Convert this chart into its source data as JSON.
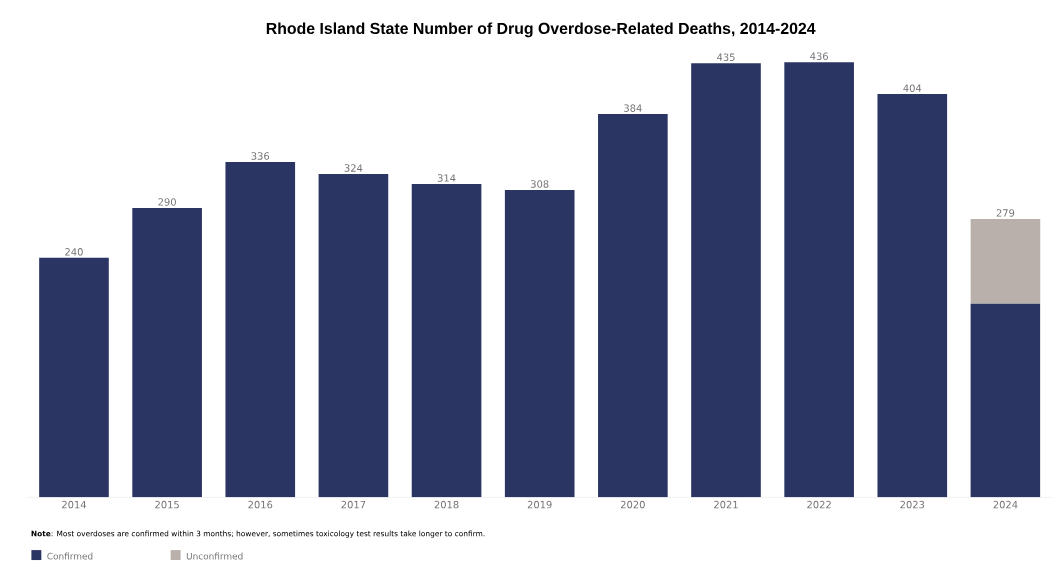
{
  "chart_data": {
    "type": "bar",
    "stacked": true,
    "title": "Rhode Island State Number of Drug Overdose-Related Deaths, 2014-2024",
    "categories": [
      "2014",
      "2015",
      "2016",
      "2017",
      "2018",
      "2019",
      "2020",
      "2021",
      "2022",
      "2023",
      "2024"
    ],
    "series": [
      {
        "name": "Confirmed",
        "color": "#2b3563",
        "values": [
          240,
          290,
          336,
          324,
          314,
          308,
          384,
          435,
          436,
          404,
          194
        ],
        "value_labels": [
          "240",
          "290",
          "336",
          "324",
          "314",
          "308",
          "384",
          "435",
          "436",
          "404",
          null
        ]
      },
      {
        "name": "Unconfirmed",
        "color": "#bab0ab",
        "values": [
          0,
          0,
          0,
          0,
          0,
          0,
          0,
          0,
          0,
          0,
          85
        ]
      }
    ],
    "totals": [
      null,
      null,
      null,
      null,
      null,
      null,
      null,
      null,
      null,
      null,
      "279"
    ],
    "annotations": [
      "**Note**: Most overdoses are confirmed within 3 months; however, sometimes toxicology test results take longer to confirm."
    ],
    "legend": "bottom left"
  }
}
